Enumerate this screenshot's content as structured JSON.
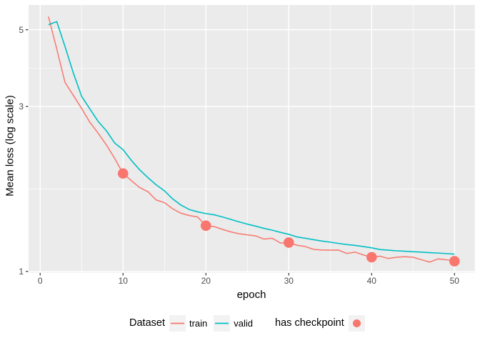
{
  "chart_data": {
    "type": "line",
    "title": "",
    "xlabel": "epoch",
    "ylabel": "Mean loss (log scale)",
    "y_scale": "log10",
    "xlim": [
      -1.4,
      52.45
    ],
    "ylim": [
      0.992,
      5.896
    ],
    "x_major_ticks": [
      0,
      10,
      20,
      30,
      40,
      50
    ],
    "x_tick_labels": [
      "0",
      "10",
      "20",
      "30",
      "40",
      "50"
    ],
    "x_minor_breaks": [
      5,
      15,
      25,
      35,
      45
    ],
    "y_major_ticks": [
      1,
      3,
      5
    ],
    "y_tick_labels": [
      "1",
      "3",
      "5"
    ],
    "y_minor_breaks": [
      1.732,
      3.873
    ],
    "grid": true,
    "panel_fill": "#EBEBEB",
    "grid_color": "#FFFFFF",
    "tick_color": "#333333",
    "x": [
      1,
      2,
      3,
      4,
      5,
      6,
      7,
      8,
      9,
      10,
      11,
      12,
      13,
      14,
      15,
      16,
      17,
      18,
      19,
      20,
      21,
      22,
      23,
      24,
      25,
      26,
      27,
      28,
      29,
      30,
      31,
      32,
      33,
      34,
      35,
      36,
      37,
      38,
      39,
      40,
      41,
      42,
      43,
      44,
      45,
      46,
      47,
      48,
      49,
      50
    ],
    "series": [
      {
        "name": "train",
        "color": "#F8766D",
        "width": 1.5,
        "values": [
          5.46,
          4.4,
          3.52,
          3.23,
          2.96,
          2.7,
          2.51,
          2.32,
          2.12,
          1.92,
          1.831,
          1.748,
          1.701,
          1.609,
          1.581,
          1.517,
          1.473,
          1.451,
          1.437,
          1.356,
          1.348,
          1.323,
          1.301,
          1.285,
          1.276,
          1.267,
          1.24,
          1.247,
          1.208,
          1.212,
          1.19,
          1.18,
          1.158,
          1.153,
          1.152,
          1.153,
          1.127,
          1.137,
          1.116,
          1.099,
          1.107,
          1.09,
          1.099,
          1.103,
          1.099,
          1.081,
          1.064,
          1.087,
          1.081,
          1.07
        ]
      },
      {
        "name": "valid",
        "color": "#00BFC4",
        "width": 1.6,
        "values": [
          5.17,
          5.28,
          4.47,
          3.75,
          3.21,
          2.95,
          2.715,
          2.55,
          2.35,
          2.25,
          2.095,
          1.968,
          1.868,
          1.78,
          1.71,
          1.62,
          1.555,
          1.51,
          1.487,
          1.47,
          1.458,
          1.437,
          1.414,
          1.391,
          1.37,
          1.352,
          1.332,
          1.316,
          1.297,
          1.28,
          1.258,
          1.247,
          1.235,
          1.224,
          1.215,
          1.205,
          1.196,
          1.189,
          1.18,
          1.17,
          1.157,
          1.152,
          1.147,
          1.144,
          1.14,
          1.137,
          1.133,
          1.13,
          1.126,
          1.122
        ]
      }
    ],
    "checkpoints": {
      "series": "train",
      "x": [
        10,
        20,
        30,
        40,
        50
      ],
      "color": "#F8766D",
      "radius": 7.3
    },
    "legend": {
      "position": "bottom",
      "dataset_title": "Dataset",
      "labels": [
        "train",
        "valid"
      ],
      "checkpoint_title": "has checkpoint",
      "key_fill": "#F2F2F2"
    }
  }
}
